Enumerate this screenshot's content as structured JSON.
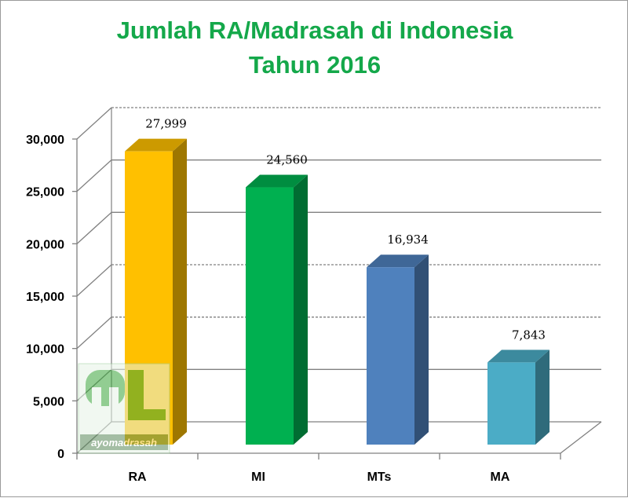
{
  "title": {
    "line1": "Jumlah RA/Madrasah di Indonesia",
    "line2": "Tahun 2016"
  },
  "chart_data": {
    "type": "bar",
    "title": "Jumlah RA/Madrasah di Indonesia Tahun 2016",
    "categories": [
      "RA",
      "MI",
      "MTs",
      "MA"
    ],
    "values": [
      27999,
      24560,
      16934,
      7843
    ],
    "value_labels": [
      "27,999",
      "24,560",
      "16,934",
      "7,843"
    ],
    "colors": [
      "#ffc000",
      "#00b050",
      "#4f81bd",
      "#4bacc6"
    ],
    "ylim": [
      0,
      30000
    ],
    "yticks": [
      "0",
      "5,000",
      "10,000",
      "15,000",
      "20,000",
      "25,000",
      "30,000"
    ],
    "xlabel": "",
    "ylabel": "",
    "grid": true,
    "style": "3d-column"
  },
  "watermark": {
    "logo_letters": "mL",
    "text": "ayomadrasah"
  }
}
